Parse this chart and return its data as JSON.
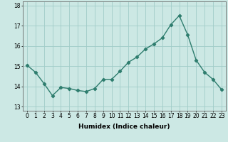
{
  "x": [
    0,
    1,
    2,
    3,
    4,
    5,
    6,
    7,
    8,
    9,
    10,
    11,
    12,
    13,
    14,
    15,
    16,
    17,
    18,
    19,
    20,
    21,
    22,
    23
  ],
  "y": [
    15.05,
    14.7,
    14.15,
    13.55,
    13.95,
    13.9,
    13.8,
    13.75,
    13.9,
    14.35,
    14.35,
    14.75,
    15.2,
    15.45,
    15.85,
    16.1,
    16.4,
    17.05,
    17.5,
    16.55,
    15.3,
    14.7,
    14.35,
    13.85
  ],
  "line_color": "#2e7d6e",
  "marker": "D",
  "marker_size": 2.2,
  "linewidth": 1.0,
  "xlabel": "Humidex (Indice chaleur)",
  "xlim": [
    -0.5,
    23.5
  ],
  "ylim": [
    12.8,
    18.2
  ],
  "yticks": [
    13,
    14,
    15,
    16,
    17,
    18
  ],
  "xticks": [
    0,
    1,
    2,
    3,
    4,
    5,
    6,
    7,
    8,
    9,
    10,
    11,
    12,
    13,
    14,
    15,
    16,
    17,
    18,
    19,
    20,
    21,
    22,
    23
  ],
  "bg_color": "#cce8e4",
  "grid_color": "#a0ccc8",
  "label_fontsize": 6.5,
  "tick_fontsize": 5.5
}
